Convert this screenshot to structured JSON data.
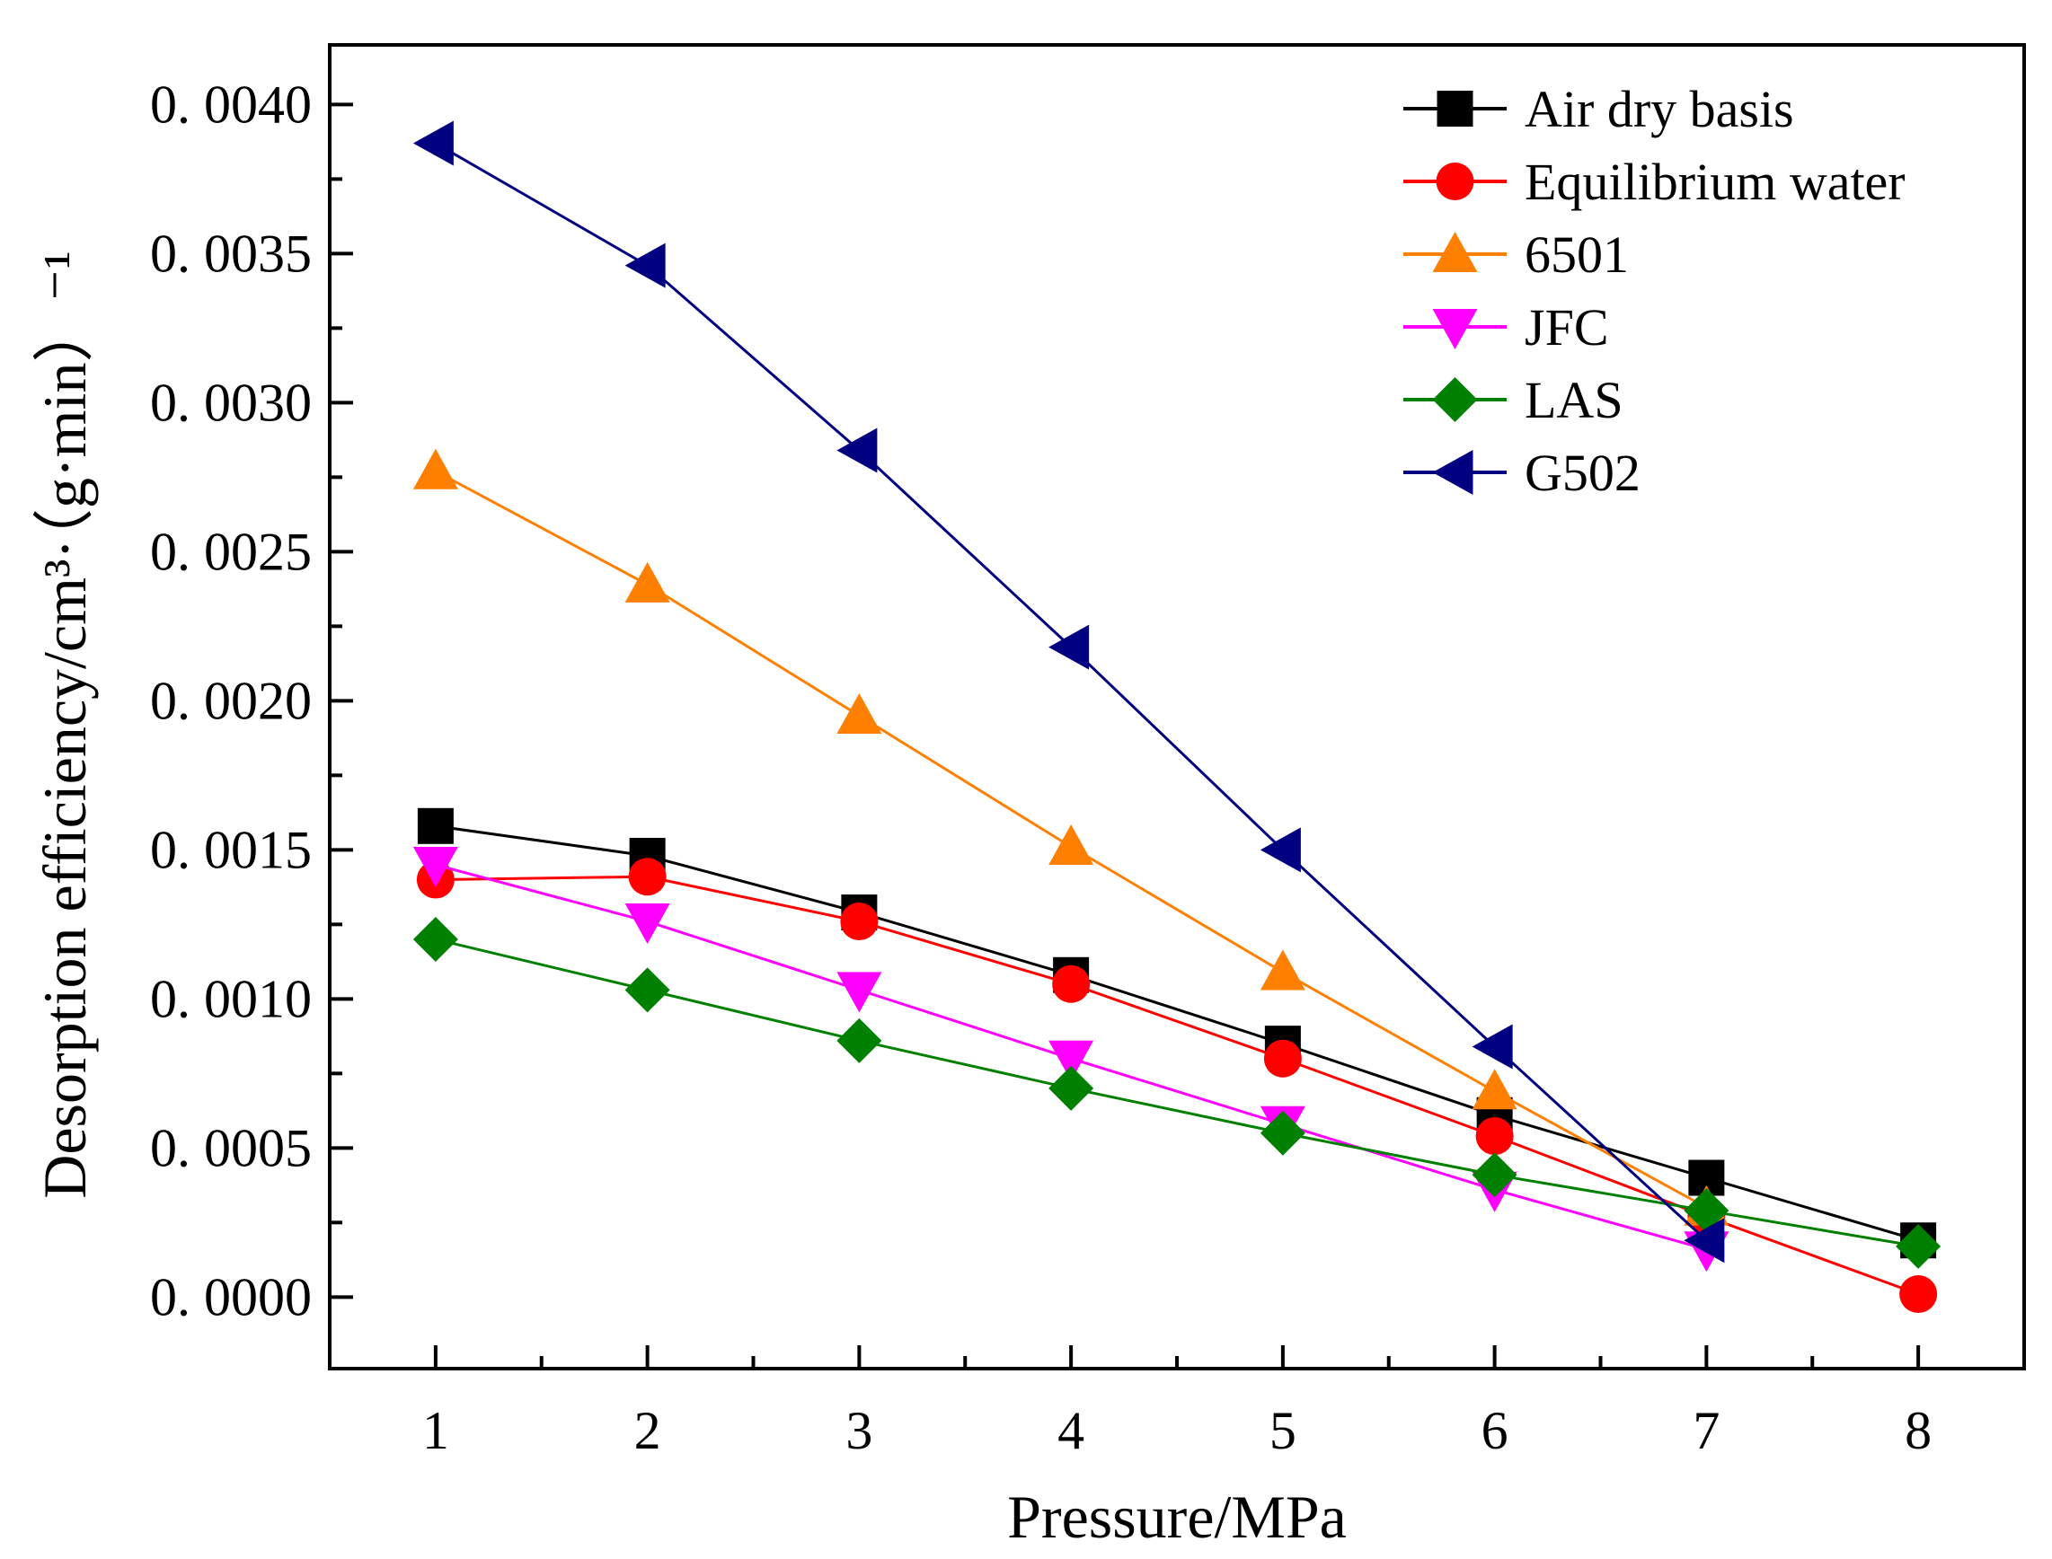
{
  "chart_data": {
    "type": "line",
    "xlabel": "Pressure/MPa",
    "ylabel": "Desorption efficiency/cm³·（g·min）⁻¹",
    "xlim": [
      0.5,
      8.5
    ],
    "ylim": [
      -0.00024,
      0.0042
    ],
    "x": [
      1,
      2,
      3,
      4,
      5,
      6,
      7,
      8
    ],
    "x_ticks": [
      "1",
      "2",
      "3",
      "4",
      "5",
      "6",
      "7",
      "8"
    ],
    "y_ticks": [
      {
        "value": 0.0,
        "label": "0. 0000"
      },
      {
        "value": 0.0005,
        "label": "0. 0005"
      },
      {
        "value": 0.001,
        "label": "0. 0010"
      },
      {
        "value": 0.0015,
        "label": "0. 0015"
      },
      {
        "value": 0.002,
        "label": "0. 0020"
      },
      {
        "value": 0.0025,
        "label": "0. 0025"
      },
      {
        "value": 0.003,
        "label": "0. 0030"
      },
      {
        "value": 0.0035,
        "label": "0. 0035"
      },
      {
        "value": 0.004,
        "label": "0. 0040"
      }
    ],
    "grid": false,
    "legend_position": "top-right",
    "series": [
      {
        "name": "Air dry basis",
        "color": "#000000",
        "marker": "square",
        "values": [
          0.00158,
          0.00148,
          0.00129,
          0.00108,
          0.00085,
          0.00061,
          0.0004,
          0.00019
        ]
      },
      {
        "name": "Equilibrium water",
        "color": "#ff0000",
        "marker": "circle",
        "values": [
          0.0014,
          0.00141,
          0.00126,
          0.00105,
          0.0008,
          0.00054,
          0.00027,
          1e-05
        ]
      },
      {
        "name": "6501",
        "color": "#ff8000",
        "marker": "triangle-up",
        "values": [
          0.00277,
          0.00239,
          0.00195,
          0.00151,
          0.00109,
          0.00069,
          0.0003,
          null
        ]
      },
      {
        "name": "JFC",
        "color": "#ff00ff",
        "marker": "triangle-down",
        "values": [
          0.00145,
          0.00126,
          0.00103,
          0.0008,
          0.00058,
          0.00036,
          0.00016,
          null
        ]
      },
      {
        "name": "LAS",
        "color": "#008000",
        "marker": "diamond",
        "values": [
          0.0012,
          0.00103,
          0.00086,
          0.0007,
          0.00055,
          0.00041,
          0.00029,
          0.00017
        ]
      },
      {
        "name": "G502",
        "color": "#000080",
        "marker": "triangle-left",
        "values": [
          0.00387,
          0.00346,
          0.00284,
          0.00218,
          0.0015,
          0.00084,
          0.00019,
          null
        ]
      }
    ]
  }
}
